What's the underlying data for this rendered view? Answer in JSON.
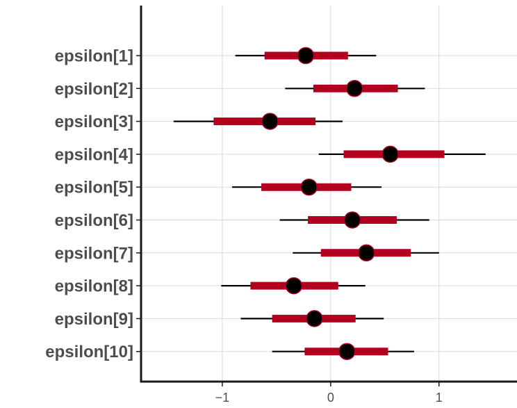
{
  "chart_data": {
    "type": "interval",
    "categories": [
      "epsilon[1]",
      "epsilon[2]",
      "epsilon[3]",
      "epsilon[4]",
      "epsilon[5]",
      "epsilon[6]",
      "epsilon[7]",
      "epsilon[8]",
      "epsilon[9]",
      "epsilon[10]"
    ],
    "series": [
      {
        "values": [
          -0.23,
          0.22,
          -0.56,
          0.55,
          -0.2,
          0.2,
          0.33,
          -0.34,
          -0.15,
          0.15
        ]
      }
    ],
    "inner_interval": [
      [
        -0.61,
        0.16
      ],
      [
        -0.16,
        0.62
      ],
      [
        -1.08,
        -0.14
      ],
      [
        0.12,
        1.05
      ],
      [
        -0.64,
        0.19
      ],
      [
        -0.21,
        0.61
      ],
      [
        -0.09,
        0.74
      ],
      [
        -0.74,
        0.07
      ],
      [
        -0.54,
        0.23
      ],
      [
        -0.24,
        0.53
      ]
    ],
    "outer_interval": [
      [
        -0.88,
        0.42
      ],
      [
        -0.42,
        0.87
      ],
      [
        -1.45,
        0.11
      ],
      [
        -0.11,
        1.43
      ],
      [
        -0.91,
        0.47
      ],
      [
        -0.47,
        0.91
      ],
      [
        -0.35,
        1.0
      ],
      [
        -1.01,
        0.32
      ],
      [
        -0.83,
        0.49
      ],
      [
        -0.54,
        0.77
      ]
    ],
    "x_ticks": [
      "−1",
      "0",
      "1"
    ],
    "x_tick_values": [
      -1,
      0,
      1
    ],
    "xlim": [
      -1.75,
      1.72
    ],
    "xlabel": "",
    "ylabel": "",
    "grid": true,
    "colors": {
      "point_fill": "#000000",
      "point_stroke": "#b2001e",
      "inner_interval": "#b2001e",
      "outer_interval": "#000000",
      "grid": "#d9d9d9",
      "axis": "#1a1a1a",
      "label": "#4d4d4d"
    }
  }
}
